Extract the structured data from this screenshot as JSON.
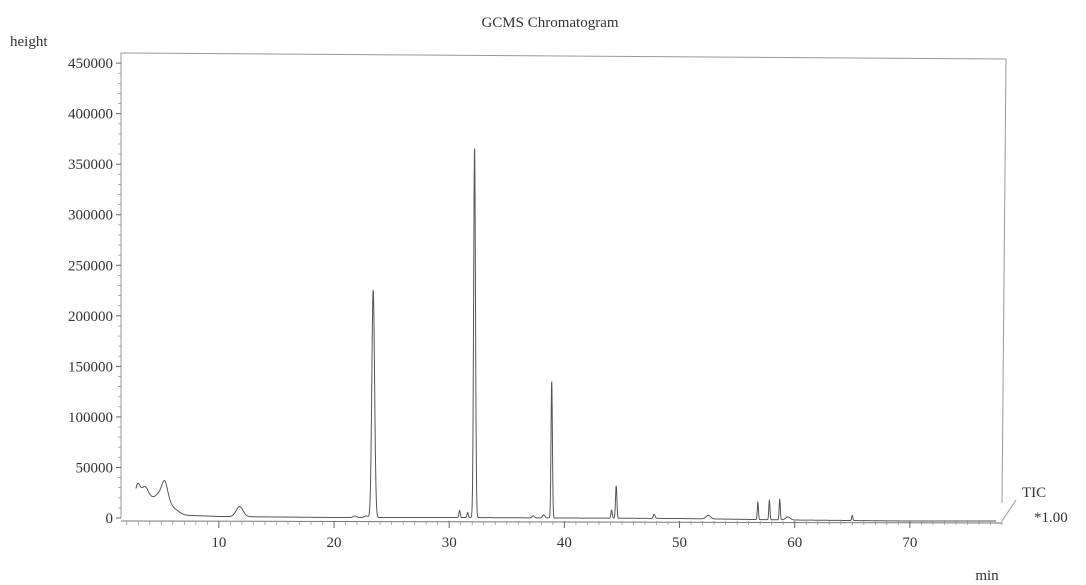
{
  "chart_data": {
    "type": "line",
    "title": "GCMS Chromatogram",
    "ylabel": "height",
    "xlabel": "min",
    "trace_label": "TIC",
    "trace_scale": "*1.00",
    "xlim": [
      1.5,
      78
    ],
    "ylim": [
      0,
      460000
    ],
    "x_ticks": [
      10,
      20,
      30,
      40,
      50,
      60,
      70
    ],
    "y_ticks": [
      0,
      50000,
      100000,
      150000,
      200000,
      250000,
      300000,
      350000,
      400000,
      450000
    ],
    "y_tick_labels": [
      "0",
      "50000",
      "100000",
      "150000",
      "200000",
      "250000",
      "300000",
      "350000",
      "400000",
      "450000"
    ],
    "grid": false,
    "series": [
      {
        "color": "#555555",
        "baseline": [
          [
            2.8,
            3000
          ],
          [
            6.5,
            3000
          ],
          [
            10,
            1500
          ],
          [
            20,
            500
          ],
          [
            30,
            500
          ],
          [
            40,
            0
          ],
          [
            50,
            -500
          ],
          [
            60,
            -2000
          ],
          [
            70,
            -3000
          ],
          [
            77.5,
            -3000
          ]
        ],
        "peaks": [
          {
            "rt": 2.9,
            "height": 25000,
            "width": 0.25
          },
          {
            "rt": 3.3,
            "height": 12000,
            "width": 0.3
          },
          {
            "rt": 3.6,
            "height": 15000,
            "width": 0.25
          },
          {
            "rt": 4.0,
            "height": 13000,
            "width": 0.3
          },
          {
            "rt": 4.5,
            "height": 10000,
            "width": 0.3
          },
          {
            "rt": 4.9,
            "height": 14000,
            "width": 0.3
          },
          {
            "rt": 5.3,
            "height": 24000,
            "width": 0.25
          },
          {
            "rt": 5.7,
            "height": 9000,
            "width": 0.3
          },
          {
            "rt": 6.3,
            "height": 4000,
            "width": 0.35
          },
          {
            "rt": 11.8,
            "height": 10000,
            "width": 0.3
          },
          {
            "rt": 21.8,
            "height": 1500,
            "width": 0.15
          },
          {
            "rt": 22.8,
            "height": 1500,
            "width": 0.15
          },
          {
            "rt": 23.4,
            "height": 225000,
            "width": 0.12
          },
          {
            "rt": 30.9,
            "height": 7000,
            "width": 0.06
          },
          {
            "rt": 31.6,
            "height": 5000,
            "width": 0.06
          },
          {
            "rt": 32.2,
            "height": 365000,
            "width": 0.08
          },
          {
            "rt": 37.3,
            "height": 2000,
            "width": 0.1
          },
          {
            "rt": 38.2,
            "height": 3000,
            "width": 0.1
          },
          {
            "rt": 38.9,
            "height": 135000,
            "width": 0.06
          },
          {
            "rt": 44.1,
            "height": 8000,
            "width": 0.06
          },
          {
            "rt": 44.5,
            "height": 32000,
            "width": 0.06
          },
          {
            "rt": 47.8,
            "height": 4000,
            "width": 0.08
          },
          {
            "rt": 52.5,
            "height": 3500,
            "width": 0.2
          },
          {
            "rt": 56.8,
            "height": 17000,
            "width": 0.05
          },
          {
            "rt": 57.8,
            "height": 19000,
            "width": 0.05
          },
          {
            "rt": 58.7,
            "height": 20000,
            "width": 0.05
          },
          {
            "rt": 59.4,
            "height": 3000,
            "width": 0.2
          },
          {
            "rt": 65.0,
            "height": 5000,
            "width": 0.05
          }
        ]
      }
    ]
  }
}
